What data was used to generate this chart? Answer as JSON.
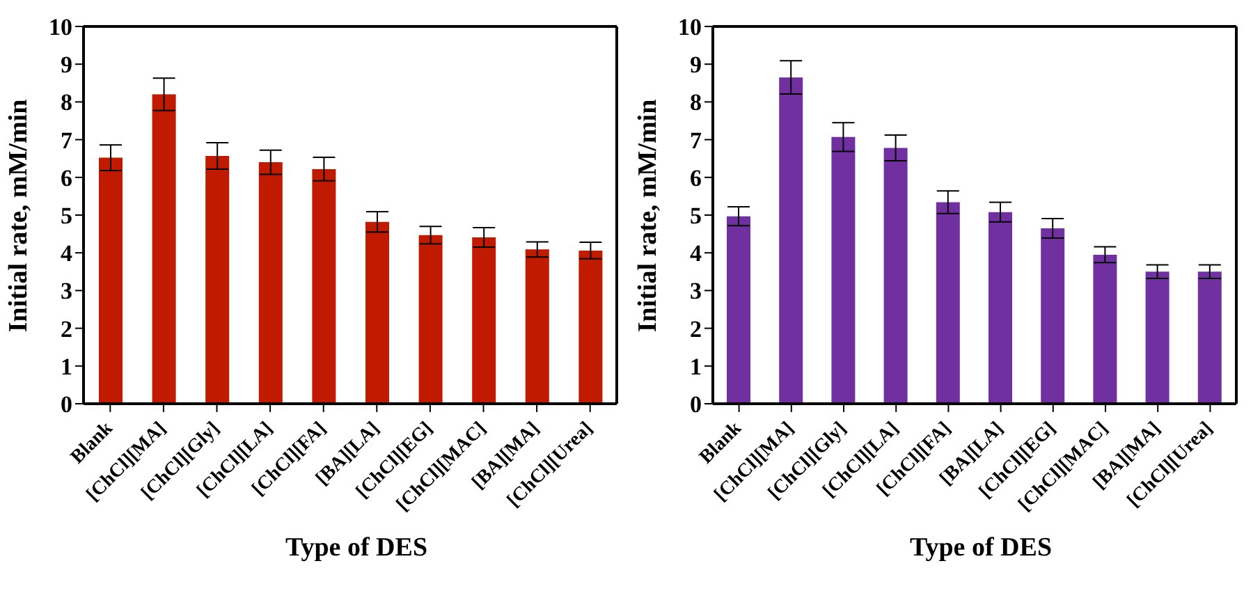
{
  "chart_data": [
    {
      "type": "bar",
      "xlabel": "Type of DES",
      "ylabel": "Initial rate, mM/min",
      "categories": [
        "Blank",
        "[ChCl][MA]",
        "[ChCl][Gly]",
        "[ChCl][LA]",
        "[ChCl][FA]",
        "[BA][LA]",
        "[ChCl][EG]",
        "[ChCl][MAC]",
        "[BA][MA]",
        "[ChCl][Urea]"
      ],
      "series": [
        {
          "color": "#c01a00",
          "values": [
            6.52,
            8.2,
            6.57,
            6.4,
            6.22,
            4.82,
            4.47,
            4.41,
            4.09,
            4.06
          ],
          "errors": [
            0.34,
            0.43,
            0.35,
            0.32,
            0.31,
            0.27,
            0.23,
            0.26,
            0.2,
            0.22
          ]
        }
      ],
      "ylim": [
        0,
        10
      ],
      "yticks": [
        0,
        1,
        2,
        3,
        4,
        5,
        6,
        7,
        8,
        9,
        10
      ]
    },
    {
      "type": "bar",
      "xlabel": "Type of DES",
      "ylabel": "Initial rate, mM/min",
      "categories": [
        "Blank",
        "[ChCl][MA]",
        "[ChCl][Gly]",
        "[ChCl][LA]",
        "[ChCl][FA]",
        "[BA][LA]",
        "[ChCl][EG]",
        "[ChCl][MAC]",
        "[BA][MA]",
        "[ChCl][Urea]"
      ],
      "series": [
        {
          "color": "#7030a0",
          "values": [
            4.97,
            8.65,
            7.07,
            6.78,
            5.34,
            5.08,
            4.65,
            3.95,
            3.5,
            3.5
          ],
          "errors": [
            0.25,
            0.44,
            0.38,
            0.34,
            0.3,
            0.26,
            0.26,
            0.21,
            0.18,
            0.18
          ]
        }
      ],
      "ylim": [
        0,
        10
      ],
      "yticks": [
        0,
        1,
        2,
        3,
        4,
        5,
        6,
        7,
        8,
        9,
        10
      ]
    }
  ]
}
